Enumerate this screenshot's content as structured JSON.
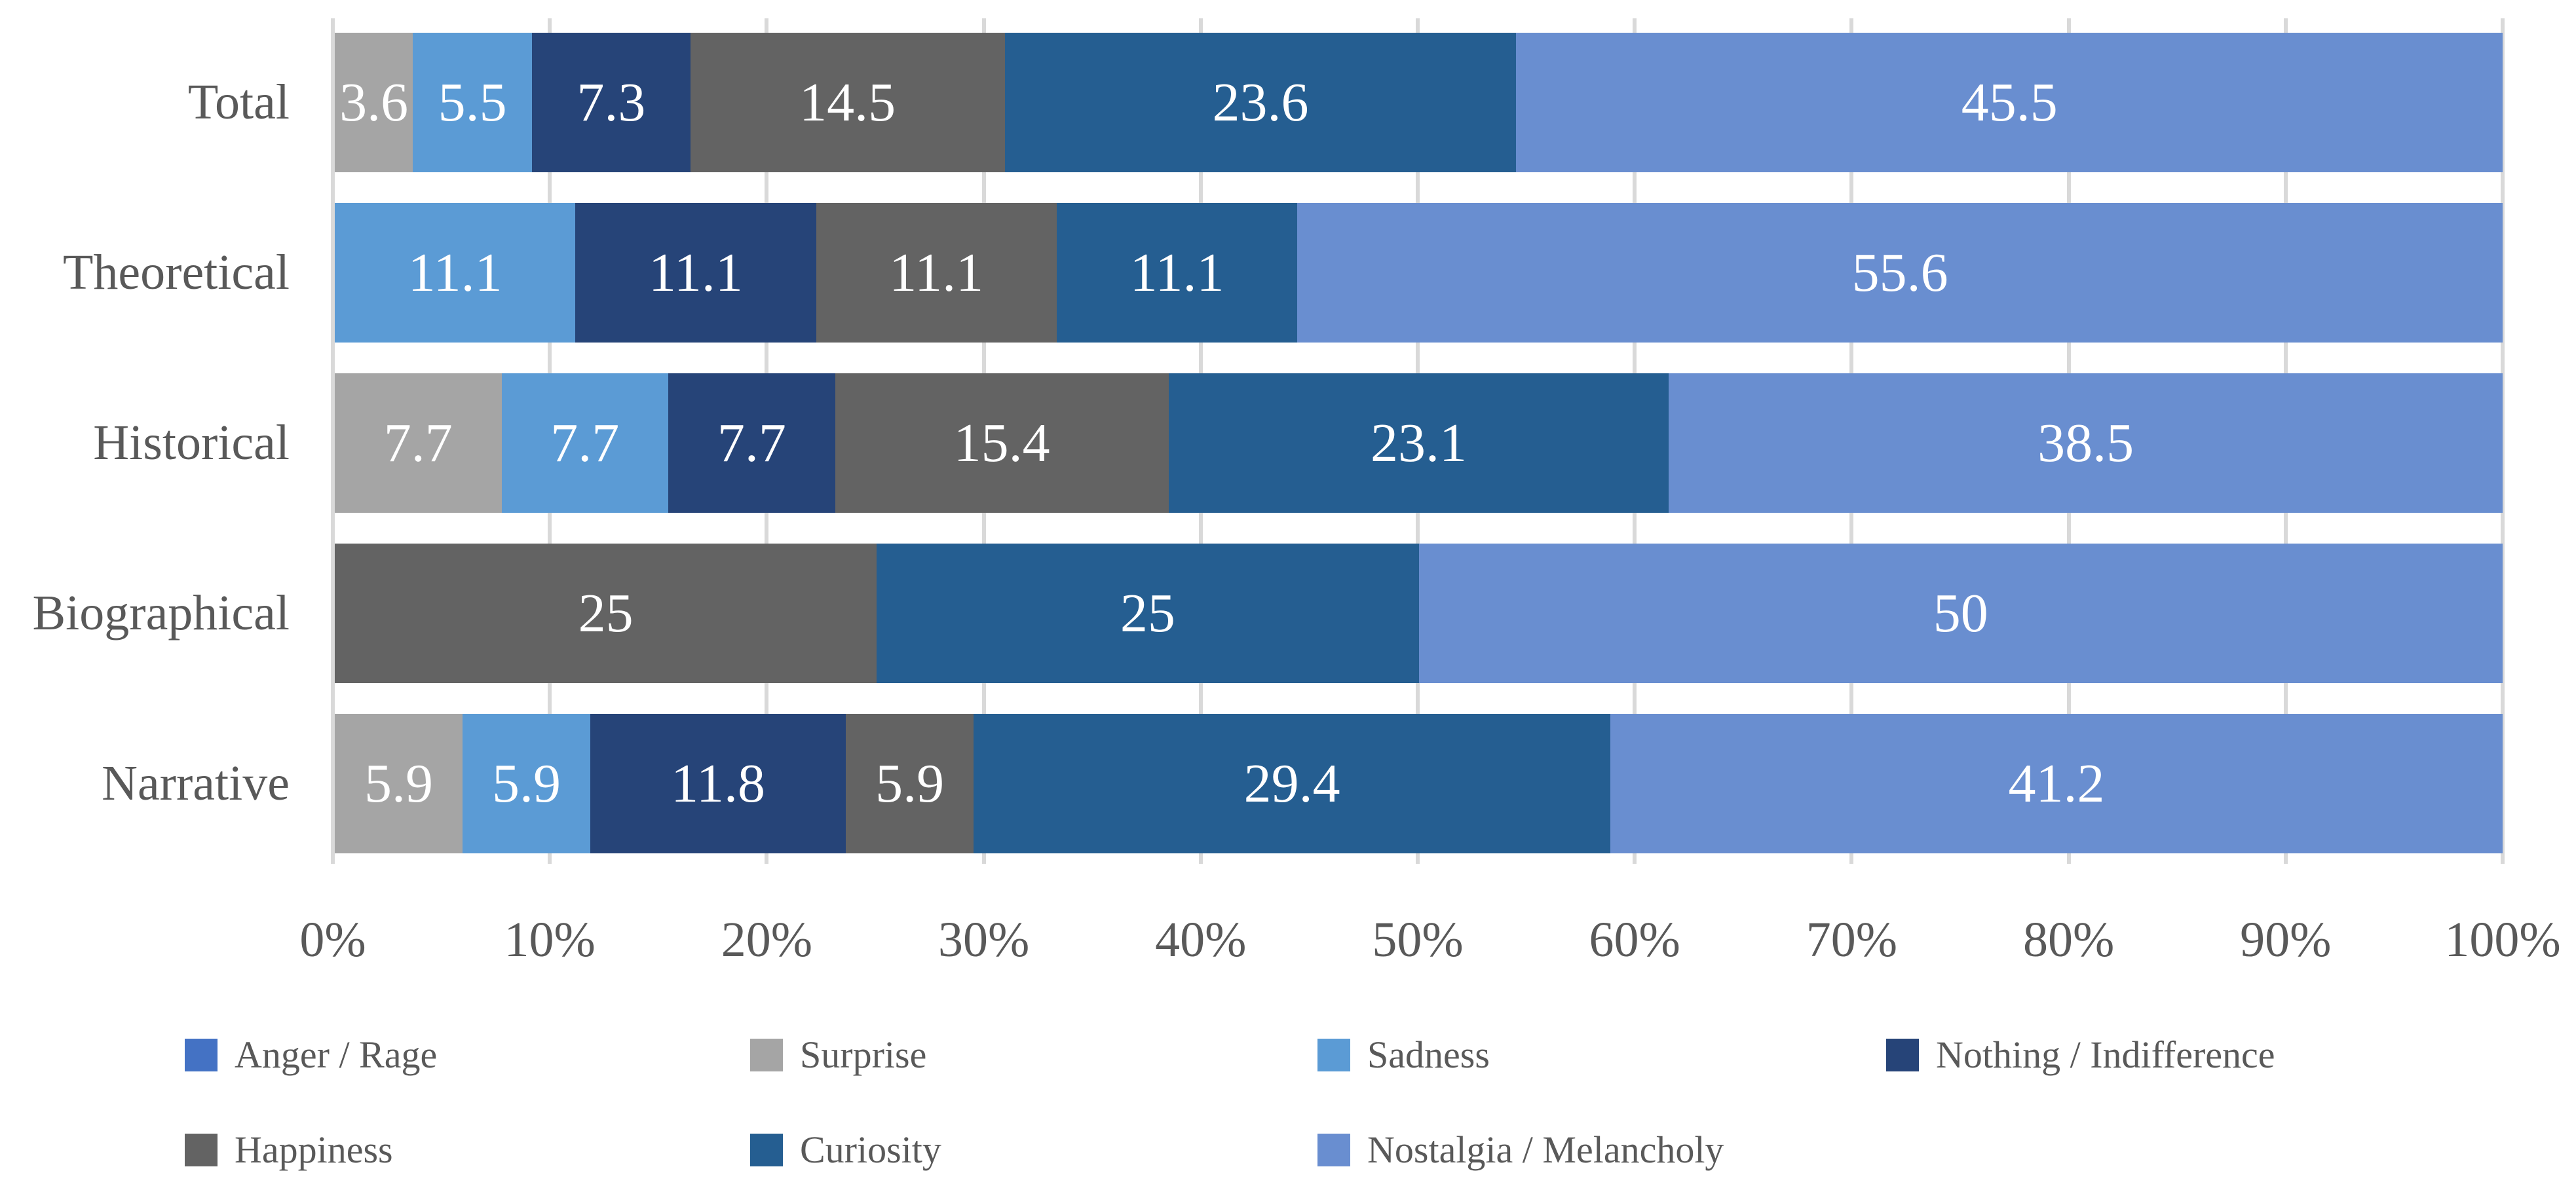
{
  "chart_data": {
    "type": "bar",
    "subtype": "stacked-horizontal-100pct",
    "title": "",
    "xlabel": "",
    "ylabel": "",
    "categories": [
      "Total",
      "Theoretical",
      "Historical",
      "Biographical",
      "Narrative"
    ],
    "series": [
      {
        "name": "Anger / Rage",
        "color": "#4472C4",
        "values": [
          0,
          0,
          0,
          0,
          0
        ]
      },
      {
        "name": "Surprise",
        "color": "#A5A5A5",
        "values": [
          3.6,
          0,
          7.7,
          0,
          5.9
        ]
      },
      {
        "name": "Sadness",
        "color": "#5B9BD5",
        "values": [
          5.5,
          11.1,
          7.7,
          0,
          5.9
        ]
      },
      {
        "name": "Nothing / Indifference",
        "color": "#264478",
        "values": [
          7.3,
          11.1,
          7.7,
          0,
          11.8
        ]
      },
      {
        "name": "Happiness",
        "color": "#636363",
        "values": [
          14.5,
          11.1,
          15.4,
          25,
          5.9
        ]
      },
      {
        "name": "Curiosity",
        "color": "#255E91",
        "values": [
          23.6,
          11.1,
          23.1,
          25,
          29.4
        ]
      },
      {
        "name": "Nostalgia / Melancholy",
        "color": "#698ED0",
        "values": [
          45.5,
          55.6,
          38.5,
          50,
          41.2
        ]
      }
    ],
    "data_labels_shown": true,
    "x_ticks": [
      "0%",
      "10%",
      "20%",
      "30%",
      "40%",
      "50%",
      "60%",
      "70%",
      "80%",
      "90%",
      "100%"
    ],
    "xlim": [
      0,
      100
    ],
    "grid": "vertical",
    "gridline_color": "#D9D9D9",
    "text_color": "#595959",
    "data_label_color": "#FFFFFF",
    "legend_position": "bottom",
    "legend_rows": [
      4,
      3
    ]
  }
}
